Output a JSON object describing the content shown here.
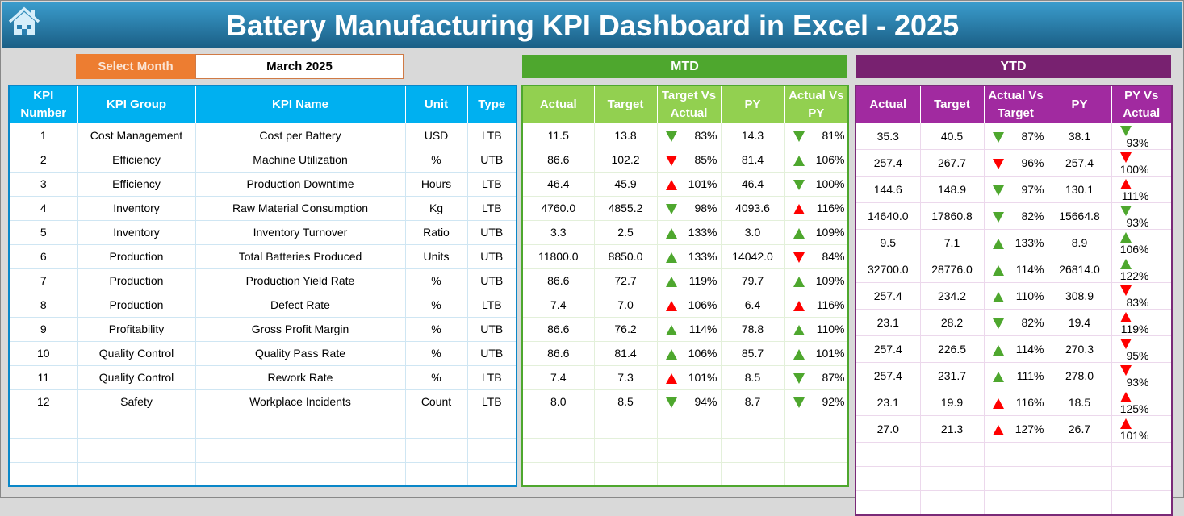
{
  "title": "Battery Manufacturing KPI Dashboard in Excel - 2025",
  "select_month": {
    "label": "Select Month",
    "value": "March 2025"
  },
  "colors": {
    "good": "#4ea72e",
    "bad": "#ff0000",
    "mtd": "#4ea72e",
    "ytd": "#782170",
    "kpi_header": "#00b0f0",
    "title": "#1f6f9c"
  },
  "mtd_label": "MTD",
  "ytd_label": "YTD",
  "kpi_headers": [
    "KPI Number",
    "KPI Group",
    "KPI Name",
    "Unit",
    "Type"
  ],
  "mtd_headers": [
    "Actual",
    "Target",
    "Target Vs Actual",
    "PY",
    "Actual Vs PY"
  ],
  "ytd_headers": [
    "Actual",
    "Target",
    "Actual Vs Target",
    "PY",
    "PY Vs Actual"
  ],
  "rows": [
    {
      "num": "1",
      "group": "Cost Management",
      "name": "Cost per Battery",
      "unit": "USD",
      "type": "LTB",
      "mtd": {
        "actual": "11.5",
        "target": "13.8",
        "tva": "83%",
        "tva_icon": "down-green",
        "py": "14.3",
        "avpy": "81%",
        "avpy_icon": "down-green"
      },
      "ytd": {
        "actual": "35.3",
        "target": "40.5",
        "avt": "87%",
        "avt_icon": "down-green",
        "py": "38.1",
        "pyva": "93%",
        "pyva_icon": "down-green"
      }
    },
    {
      "num": "2",
      "group": "Efficiency",
      "name": "Machine Utilization",
      "unit": "%",
      "type": "UTB",
      "mtd": {
        "actual": "86.6",
        "target": "102.2",
        "tva": "85%",
        "tva_icon": "down-red",
        "py": "81.4",
        "avpy": "106%",
        "avpy_icon": "up-green"
      },
      "ytd": {
        "actual": "257.4",
        "target": "267.7",
        "avt": "96%",
        "avt_icon": "down-red",
        "py": "257.4",
        "pyva": "100%",
        "pyva_icon": "down-red"
      }
    },
    {
      "num": "3",
      "group": "Efficiency",
      "name": "Production Downtime",
      "unit": "Hours",
      "type": "LTB",
      "mtd": {
        "actual": "46.4",
        "target": "45.9",
        "tva": "101%",
        "tva_icon": "up-red",
        "py": "46.4",
        "avpy": "100%",
        "avpy_icon": "down-green"
      },
      "ytd": {
        "actual": "144.6",
        "target": "148.9",
        "avt": "97%",
        "avt_icon": "down-green",
        "py": "130.1",
        "pyva": "111%",
        "pyva_icon": "up-red"
      }
    },
    {
      "num": "4",
      "group": "Inventory",
      "name": "Raw Material Consumption",
      "unit": "Kg",
      "type": "LTB",
      "mtd": {
        "actual": "4760.0",
        "target": "4855.2",
        "tva": "98%",
        "tva_icon": "down-green",
        "py": "4093.6",
        "avpy": "116%",
        "avpy_icon": "up-red"
      },
      "ytd": {
        "actual": "14640.0",
        "target": "17860.8",
        "avt": "82%",
        "avt_icon": "down-green",
        "py": "15664.8",
        "pyva": "93%",
        "pyva_icon": "down-green"
      }
    },
    {
      "num": "5",
      "group": "Inventory",
      "name": "Inventory Turnover",
      "unit": "Ratio",
      "type": "UTB",
      "mtd": {
        "actual": "3.3",
        "target": "2.5",
        "tva": "133%",
        "tva_icon": "up-green",
        "py": "3.0",
        "avpy": "109%",
        "avpy_icon": "up-green"
      },
      "ytd": {
        "actual": "9.5",
        "target": "7.1",
        "avt": "133%",
        "avt_icon": "up-green",
        "py": "8.9",
        "pyva": "106%",
        "pyva_icon": "up-green"
      }
    },
    {
      "num": "6",
      "group": "Production",
      "name": "Total Batteries Produced",
      "unit": "Units",
      "type": "UTB",
      "mtd": {
        "actual": "11800.0",
        "target": "8850.0",
        "tva": "133%",
        "tva_icon": "up-green",
        "py": "14042.0",
        "avpy": "84%",
        "avpy_icon": "down-red"
      },
      "ytd": {
        "actual": "32700.0",
        "target": "28776.0",
        "avt": "114%",
        "avt_icon": "up-green",
        "py": "26814.0",
        "pyva": "122%",
        "pyva_icon": "up-green"
      }
    },
    {
      "num": "7",
      "group": "Production",
      "name": "Production Yield Rate",
      "unit": "%",
      "type": "UTB",
      "mtd": {
        "actual": "86.6",
        "target": "72.7",
        "tva": "119%",
        "tva_icon": "up-green",
        "py": "79.7",
        "avpy": "109%",
        "avpy_icon": "up-green"
      },
      "ytd": {
        "actual": "257.4",
        "target": "234.2",
        "avt": "110%",
        "avt_icon": "up-green",
        "py": "308.9",
        "pyva": "83%",
        "pyva_icon": "down-red"
      }
    },
    {
      "num": "8",
      "group": "Production",
      "name": "Defect Rate",
      "unit": "%",
      "type": "LTB",
      "mtd": {
        "actual": "7.4",
        "target": "7.0",
        "tva": "106%",
        "tva_icon": "up-red",
        "py": "6.4",
        "avpy": "116%",
        "avpy_icon": "up-red"
      },
      "ytd": {
        "actual": "23.1",
        "target": "28.2",
        "avt": "82%",
        "avt_icon": "down-green",
        "py": "19.4",
        "pyva": "119%",
        "pyva_icon": "up-red"
      }
    },
    {
      "num": "9",
      "group": "Profitability",
      "name": "Gross Profit Margin",
      "unit": "%",
      "type": "UTB",
      "mtd": {
        "actual": "86.6",
        "target": "76.2",
        "tva": "114%",
        "tva_icon": "up-green",
        "py": "78.8",
        "avpy": "110%",
        "avpy_icon": "up-green"
      },
      "ytd": {
        "actual": "257.4",
        "target": "226.5",
        "avt": "114%",
        "avt_icon": "up-green",
        "py": "270.3",
        "pyva": "95%",
        "pyva_icon": "down-red"
      }
    },
    {
      "num": "10",
      "group": "Quality Control",
      "name": "Quality Pass Rate",
      "unit": "%",
      "type": "UTB",
      "mtd": {
        "actual": "86.6",
        "target": "81.4",
        "tva": "106%",
        "tva_icon": "up-green",
        "py": "85.7",
        "avpy": "101%",
        "avpy_icon": "up-green"
      },
      "ytd": {
        "actual": "257.4",
        "target": "231.7",
        "avt": "111%",
        "avt_icon": "up-green",
        "py": "278.0",
        "pyva": "93%",
        "pyva_icon": "down-red"
      }
    },
    {
      "num": "11",
      "group": "Quality Control",
      "name": "Rework Rate",
      "unit": "%",
      "type": "LTB",
      "mtd": {
        "actual": "7.4",
        "target": "7.3",
        "tva": "101%",
        "tva_icon": "up-red",
        "py": "8.5",
        "avpy": "87%",
        "avpy_icon": "down-green"
      },
      "ytd": {
        "actual": "23.1",
        "target": "19.9",
        "avt": "116%",
        "avt_icon": "up-red",
        "py": "18.5",
        "pyva": "125%",
        "pyva_icon": "up-red"
      }
    },
    {
      "num": "12",
      "group": "Safety",
      "name": "Workplace Incidents",
      "unit": "Count",
      "type": "LTB",
      "mtd": {
        "actual": "8.0",
        "target": "8.5",
        "tva": "94%",
        "tva_icon": "down-green",
        "py": "8.7",
        "avpy": "92%",
        "avpy_icon": "down-green"
      },
      "ytd": {
        "actual": "27.0",
        "target": "21.3",
        "avt": "127%",
        "avt_icon": "up-red",
        "py": "26.7",
        "pyva": "101%",
        "pyva_icon": "up-red"
      }
    }
  ]
}
